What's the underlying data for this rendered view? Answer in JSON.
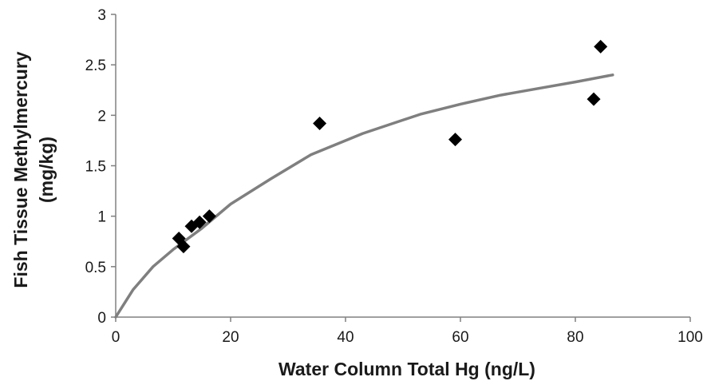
{
  "chart_data": {
    "type": "scatter",
    "title": "",
    "xlabel": "Water Column Total Hg (ng/L)",
    "ylabel_line1": "Fish Tissue Methylmercury",
    "ylabel_line2": "(mg/kg)",
    "xlim": [
      0,
      100
    ],
    "ylim": [
      0,
      3
    ],
    "x_ticks": [
      "0",
      "20",
      "40",
      "60",
      "80",
      "100"
    ],
    "y_ticks": [
      "0",
      "0.5",
      "1",
      "1.5",
      "2",
      "2.5",
      "3"
    ],
    "grid": false,
    "legend": "none",
    "series": [
      {
        "kind": "points",
        "marker": "diamond",
        "color": "#000000",
        "points": [
          {
            "x": 11,
            "y": 0.78
          },
          {
            "x": 11.8,
            "y": 0.7
          },
          {
            "x": 13.2,
            "y": 0.9
          },
          {
            "x": 14.6,
            "y": 0.94
          },
          {
            "x": 16.3,
            "y": 1.0
          },
          {
            "x": 35.5,
            "y": 1.92
          },
          {
            "x": 59.1,
            "y": 1.76
          },
          {
            "x": 83.2,
            "y": 2.16
          },
          {
            "x": 84.4,
            "y": 2.68
          }
        ]
      },
      {
        "kind": "curve",
        "color": "#7f7f7f",
        "points": [
          {
            "x": 0,
            "y": 0
          },
          {
            "x": 3,
            "y": 0.27
          },
          {
            "x": 6.5,
            "y": 0.5
          },
          {
            "x": 10,
            "y": 0.67
          },
          {
            "x": 15,
            "y": 0.88
          },
          {
            "x": 20,
            "y": 1.12
          },
          {
            "x": 27,
            "y": 1.37
          },
          {
            "x": 34,
            "y": 1.61
          },
          {
            "x": 43,
            "y": 1.82
          },
          {
            "x": 53,
            "y": 2.01
          },
          {
            "x": 60,
            "y": 2.11
          },
          {
            "x": 67,
            "y": 2.2
          },
          {
            "x": 74,
            "y": 2.27
          },
          {
            "x": 80,
            "y": 2.33
          },
          {
            "x": 86.5,
            "y": 2.4
          }
        ]
      }
    ]
  }
}
